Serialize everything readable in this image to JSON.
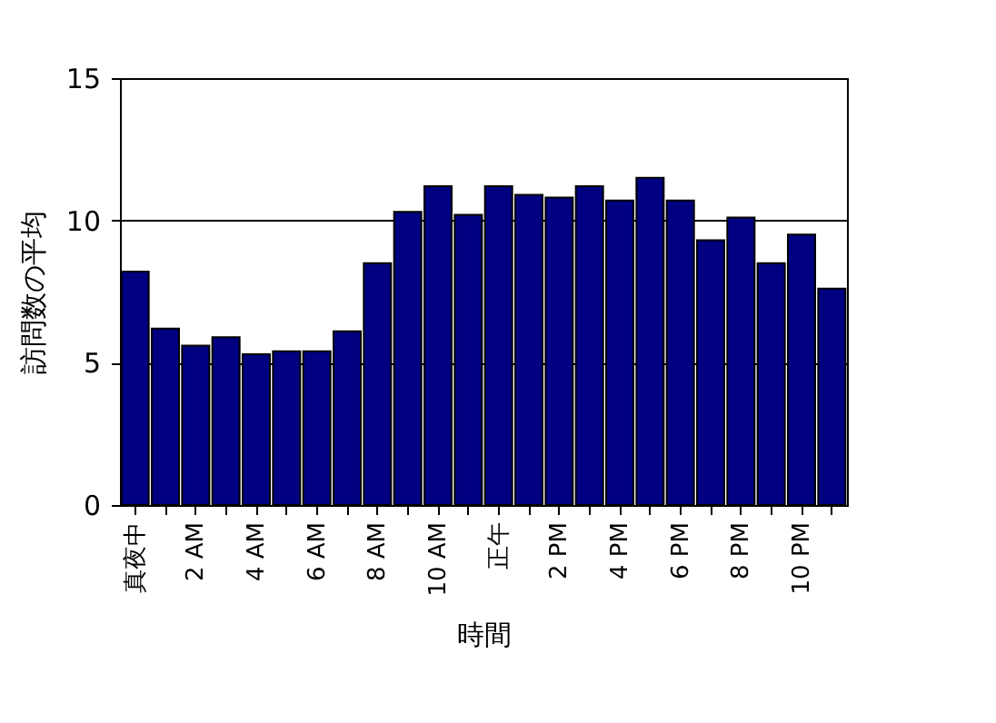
{
  "chart_data": {
    "type": "bar",
    "xlabel": "時間",
    "ylabel": "訪問数の平均",
    "categories": [
      "真夜中",
      null,
      "2 AM",
      null,
      "4 AM",
      null,
      "6 AM",
      null,
      "8 AM",
      null,
      "10 AM",
      null,
      "正午",
      null,
      "2 PM",
      null,
      "4 PM",
      null,
      "6 PM",
      null,
      "8 PM",
      null,
      "10 PM",
      null
    ],
    "values": [
      8.2,
      6.2,
      5.6,
      5.9,
      5.3,
      5.4,
      5.4,
      6.1,
      8.5,
      10.3,
      11.2,
      10.2,
      11.2,
      10.9,
      10.8,
      11.2,
      10.7,
      11.5,
      10.7,
      9.3,
      10.1,
      8.5,
      9.5,
      7.6
    ],
    "color": "#000080",
    "ylim": [
      0,
      15
    ],
    "yticks": [
      0,
      5,
      10,
      15
    ],
    "grid": "y"
  }
}
